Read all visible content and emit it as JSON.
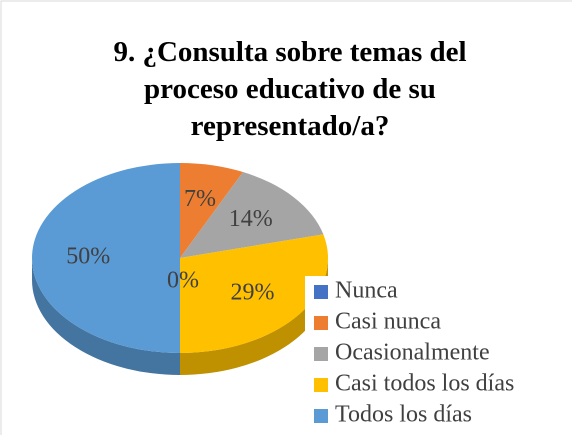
{
  "chart_data": {
    "type": "pie",
    "title": "9. ¿Consulta sobre temas del proceso educativo de su representado/a?",
    "categories": [
      "Nunca",
      "Casi nunca",
      "Ocasionalmente",
      "Casi todos los días",
      "Todos los días"
    ],
    "values": [
      0,
      7,
      14,
      29,
      50
    ],
    "value_labels": [
      "0%",
      "7%",
      "14%",
      "29%",
      "50%"
    ],
    "colors": [
      "#4472c4",
      "#ed7d31",
      "#a5a5a5",
      "#ffc000",
      "#5b9bd5"
    ],
    "legend": "right"
  }
}
